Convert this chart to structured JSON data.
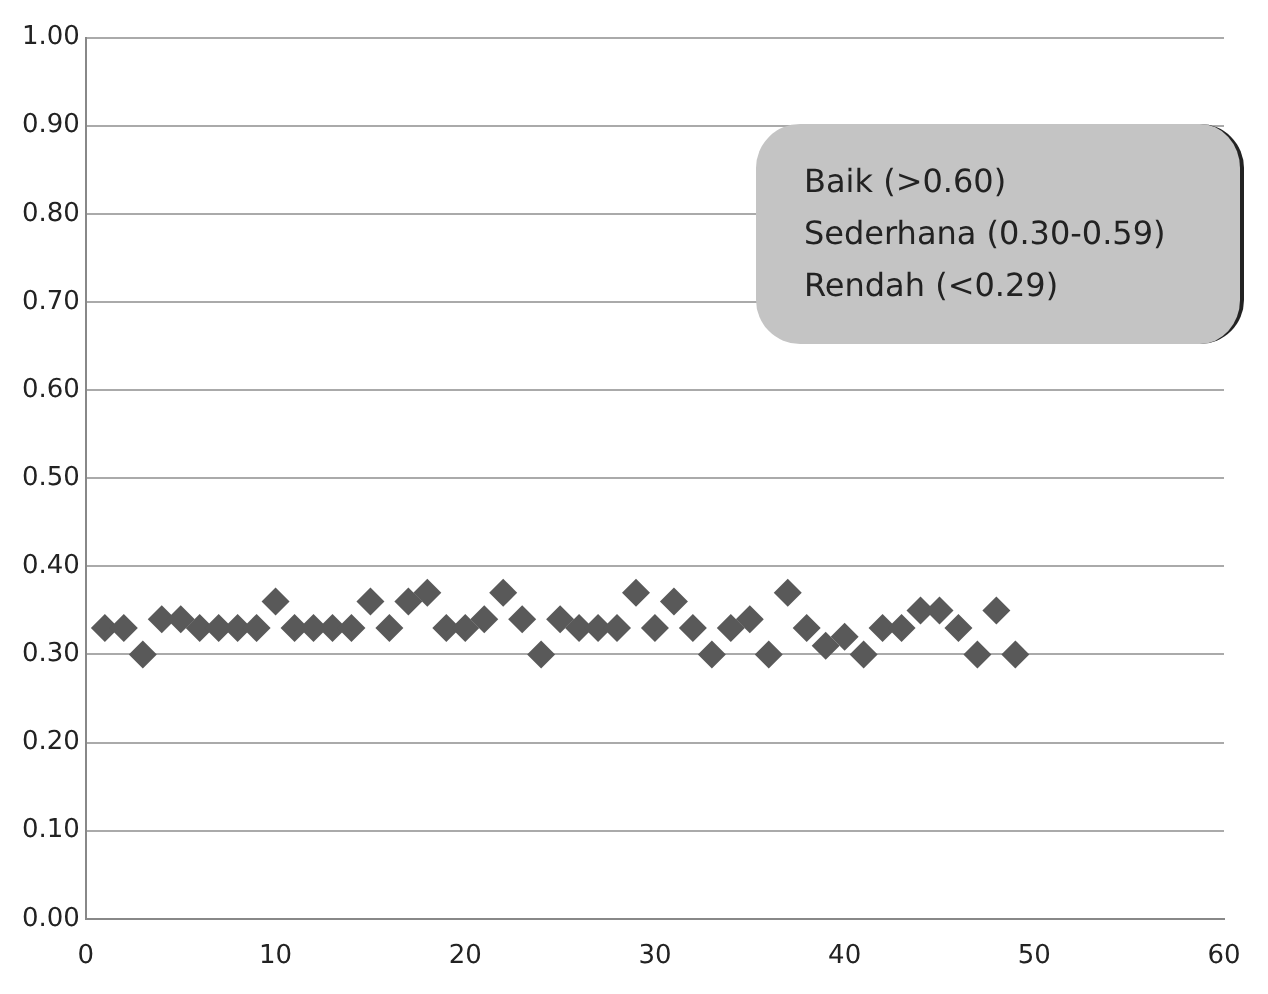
{
  "chart_data": {
    "type": "scatter",
    "x": [
      1,
      2,
      3,
      4,
      5,
      6,
      7,
      8,
      9,
      10,
      11,
      12,
      13,
      14,
      15,
      16,
      17,
      18,
      19,
      20,
      21,
      22,
      23,
      24,
      25,
      26,
      27,
      28,
      29,
      30,
      31,
      32,
      33,
      34,
      35,
      36,
      37,
      38,
      39,
      40,
      41,
      42,
      43,
      44,
      45,
      46,
      47,
      48,
      49
    ],
    "series": [
      {
        "color": "#595959",
        "values": [
          0.33,
          0.33,
          0.3,
          0.34,
          0.34,
          0.33,
          0.33,
          0.33,
          0.33,
          0.36,
          0.33,
          0.33,
          0.33,
          0.33,
          0.36,
          0.33,
          0.36,
          0.37,
          0.33,
          0.33,
          0.34,
          0.37,
          0.34,
          0.3,
          0.34,
          0.33,
          0.33,
          0.33,
          0.37,
          0.33,
          0.36,
          0.33,
          0.3,
          0.33,
          0.34,
          0.3,
          0.37,
          0.33,
          0.31,
          0.32,
          0.3,
          0.33,
          0.33,
          0.35,
          0.35,
          0.33,
          0.3,
          0.35,
          0.3
        ]
      }
    ],
    "xlim": [
      0,
      60
    ],
    "xticks": [
      0,
      10,
      20,
      30,
      40,
      50,
      60
    ],
    "ylim": [
      0,
      1
    ],
    "yticks": [
      {
        "value": 0,
        "label": "0.00"
      },
      {
        "value": 0.1,
        "label": "0.10"
      },
      {
        "value": 0.2,
        "label": "0.20"
      },
      {
        "value": 0.3,
        "label": "0.30"
      },
      {
        "value": 0.4,
        "label": "0.40"
      },
      {
        "value": 0.5,
        "label": "0.50"
      },
      {
        "value": 0.6,
        "label": "0.60"
      },
      {
        "value": 0.7,
        "label": "0.70"
      },
      {
        "value": 0.8,
        "label": "0.80"
      },
      {
        "value": 0.9,
        "label": "0.90"
      },
      {
        "value": 1,
        "label": "1.00"
      }
    ],
    "grid": "y",
    "marker": "diamond",
    "legend": false,
    "annotations": [
      "Baik (>0.60)",
      "Sederhana (0.30-0.59)",
      "Rendah (<0.29)"
    ]
  }
}
